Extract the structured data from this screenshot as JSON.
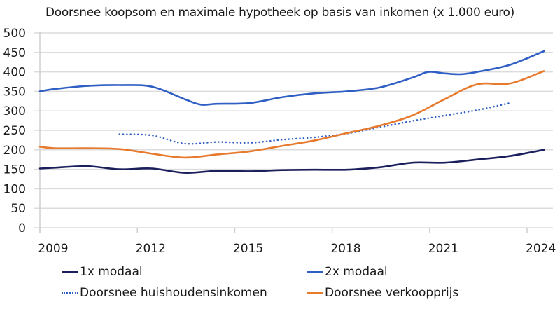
{
  "chart_data": {
    "type": "line",
    "title": "Doorsnee koopsom en maximale hypotheek op basis van inkomen (x 1.000 euro)",
    "xlabel": "",
    "ylabel": "",
    "ylim": [
      0,
      500
    ],
    "xlim": [
      2008.55,
      2024.05
    ],
    "yticks": [
      0,
      50,
      100,
      150,
      200,
      250,
      300,
      350,
      400,
      450,
      500
    ],
    "xticks": [
      "2009",
      "2012",
      "2015",
      "2018",
      "2021",
      "2024"
    ],
    "grid": true,
    "legend_position": "bottom",
    "series": [
      {
        "name": "1x modaal",
        "color": "#1b1f5c",
        "style": "solid",
        "x": [
          2008.55,
          2009,
          2010,
          2011,
          2012,
          2013,
          2014,
          2015,
          2016,
          2017,
          2018,
          2019,
          2020,
          2021,
          2022,
          2023,
          2024.05
        ],
        "values": [
          152,
          154,
          158,
          150,
          152,
          141,
          146,
          145,
          148,
          149,
          149,
          155,
          167,
          167,
          175,
          184,
          200
        ]
      },
      {
        "name": "2x modaal",
        "color": "#2f5fc4",
        "style": "solid",
        "x": [
          2008.55,
          2009,
          2010,
          2011,
          2012,
          2013,
          2013.5,
          2014,
          2015,
          2016,
          2017,
          2018,
          2019,
          2020,
          2020.5,
          2021,
          2021.5,
          2022,
          2023,
          2024.05
        ],
        "values": [
          350,
          356,
          364,
          366,
          362,
          330,
          316,
          318,
          320,
          335,
          345,
          350,
          360,
          385,
          400,
          396,
          394,
          400,
          418,
          453
        ]
      },
      {
        "name": "Doorsnee huishoudensinkomen",
        "color": "#2f5fc4",
        "style": "dotted",
        "x": [
          2011,
          2012,
          2013,
          2014,
          2015,
          2016,
          2017,
          2018,
          2019,
          2020,
          2021,
          2022,
          2023
        ],
        "values": [
          240,
          237,
          216,
          220,
          218,
          226,
          232,
          242,
          258,
          274,
          288,
          302,
          320
        ]
      },
      {
        "name": "Doorsnee verkoopprijs",
        "color": "#e87a2e",
        "style": "solid",
        "x": [
          2008.55,
          2009,
          2010,
          2011,
          2012,
          2013,
          2014,
          2015,
          2016,
          2017,
          2018,
          2019,
          2020,
          2021,
          2022,
          2023,
          2024.05
        ],
        "values": [
          208,
          204,
          204,
          202,
          190,
          180,
          188,
          196,
          210,
          224,
          243,
          262,
          288,
          330,
          368,
          370,
          402
        ]
      }
    ]
  }
}
